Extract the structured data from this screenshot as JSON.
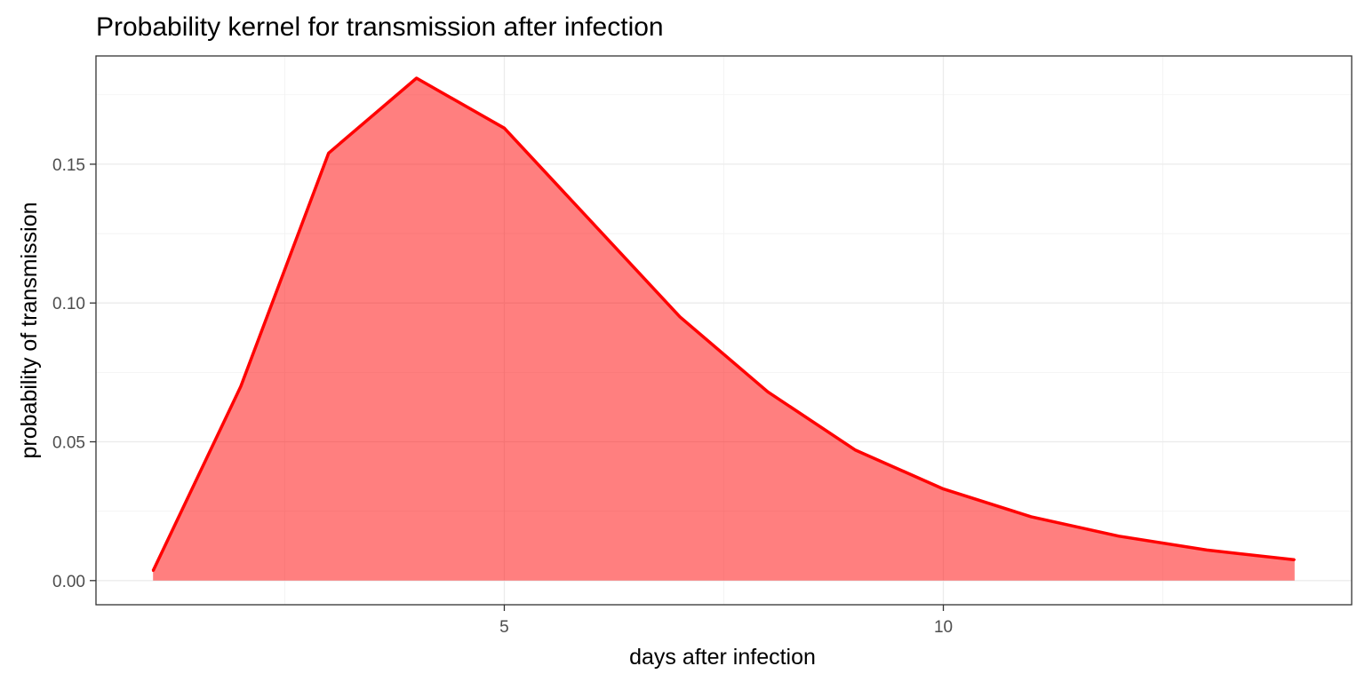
{
  "chart_data": {
    "type": "area",
    "title": "Probability kernel for transmission after infection",
    "xlabel": "days after infection",
    "ylabel": "probability of transmission",
    "xlim": [
      0.35,
      14.65
    ],
    "ylim": [
      -0.0087,
      0.189
    ],
    "x_ticks": [
      5,
      10
    ],
    "x_tick_labels": [
      "5",
      "10"
    ],
    "y_ticks": [
      0,
      0.05,
      0.1,
      0.15
    ],
    "y_tick_labels": [
      "0.00",
      "0.05",
      "0.10",
      "0.15"
    ],
    "grid": true,
    "legend": "none",
    "series": [
      {
        "x": [
          1,
          2,
          3,
          4,
          5,
          6,
          7,
          8,
          9,
          10,
          11,
          12,
          13,
          14
        ],
        "values": [
          0.0035,
          0.07,
          0.154,
          0.181,
          0.163,
          0.129,
          0.095,
          0.068,
          0.047,
          0.033,
          0.023,
          0.016,
          0.011,
          0.0075
        ],
        "line_color": "#ff0000",
        "fill_color": "#ff0000"
      }
    ]
  }
}
